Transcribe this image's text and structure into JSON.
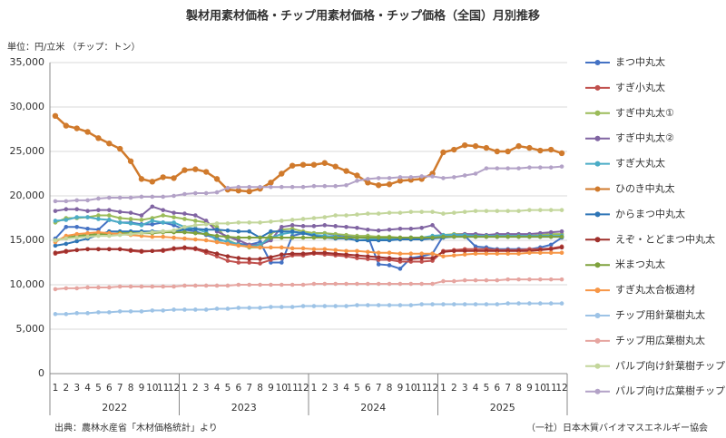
{
  "chart_data": {
    "type": "line",
    "title": "製材用素材価格・チップ用素材価格・チップ価格（全国）月別推移",
    "y_label": "単位：円/立米 （チップ：トン）",
    "source": "出典：農林水産省「木材価格統計」より",
    "credit": "（一社）日本木質バイオマスエネルギー協会",
    "categories": [
      "1",
      "2",
      "3",
      "4",
      "5",
      "6",
      "7",
      "8",
      "9",
      "10",
      "11",
      "12",
      "1",
      "2",
      "3",
      "4",
      "5",
      "6",
      "7",
      "8",
      "9",
      "10",
      "11",
      "12",
      "1",
      "2",
      "3",
      "4",
      "5",
      "6",
      "7",
      "8",
      "9",
      "10",
      "11",
      "12",
      "1",
      "2",
      "3",
      "4",
      "5",
      "6",
      "7",
      "8",
      "9",
      "10",
      "11",
      "12"
    ],
    "years": [
      "2022",
      "2023",
      "2024",
      "2025"
    ],
    "ylim": [
      0,
      35000
    ],
    "yticks": [
      0,
      {
        "value": 5000,
        "label": "5,000"
      },
      {
        "value": 10000,
        "label": "10,000"
      },
      {
        "value": 15000,
        "label": "15,000"
      },
      {
        "value": 20000,
        "label": "20,000"
      },
      {
        "value": 25000,
        "label": "25,000"
      },
      {
        "value": 30000,
        "label": "30,000"
      },
      {
        "value": 35000,
        "label": "35,000"
      }
    ],
    "grid": true,
    "legend": "right",
    "series": [
      {
        "name": "まつ中丸太",
        "color": "#4472c4",
        "values": [
          15200,
          16500,
          16500,
          16300,
          16200,
          17300,
          17000,
          17000,
          16800,
          16800,
          17000,
          16700,
          16200,
          16000,
          15600,
          15200,
          14800,
          14600,
          14500,
          14800,
          12500,
          12500,
          15500,
          15800,
          15800,
          15800,
          15600,
          15500,
          15400,
          15500,
          12300,
          12200,
          11800,
          13000,
          13200,
          13500,
          15500,
          15500,
          15500,
          14300,
          14200,
          14000,
          14000,
          14000,
          14000,
          14200,
          14500,
          15300
        ]
      },
      {
        "name": "すぎ小丸太",
        "color": "#c0504d",
        "values": [
          13500,
          13700,
          13900,
          14000,
          14000,
          14000,
          14000,
          13800,
          13700,
          13800,
          13800,
          14000,
          14100,
          14000,
          13600,
          13200,
          12700,
          12500,
          12500,
          12400,
          12800,
          13000,
          13300,
          13300,
          13500,
          13400,
          13300,
          13200,
          13000,
          12900,
          12800,
          12800,
          12600,
          12600,
          12600,
          12700,
          13800,
          13900,
          14000,
          14000,
          14000,
          13900,
          13900,
          13900,
          14000,
          14000,
          14100,
          14300
        ]
      },
      {
        "name": "すぎ中丸太①",
        "color": "#9bbb59",
        "values": [
          17000,
          17500,
          17500,
          17600,
          17800,
          17800,
          17500,
          17400,
          17300,
          17500,
          17800,
          17600,
          17400,
          17200,
          17000,
          16500,
          15000,
          14500,
          14200,
          14200,
          15800,
          16200,
          16300,
          16000,
          15800,
          15800,
          15700,
          15600,
          15500,
          15500,
          15400,
          15400,
          15300,
          15300,
          15300,
          15400,
          15600,
          15700,
          15700,
          15600,
          15500,
          15500,
          15500,
          15500,
          15500,
          15600,
          15700,
          15700
        ]
      },
      {
        "name": "すぎ中丸太②",
        "color": "#8064a2",
        "values": [
          18300,
          18500,
          18500,
          18300,
          18400,
          18400,
          18200,
          18100,
          17800,
          18800,
          18400,
          18100,
          18000,
          17800,
          17200,
          16000,
          15400,
          15000,
          14500,
          14500,
          15000,
          16500,
          16700,
          16600,
          16600,
          16700,
          16600,
          16500,
          16400,
          16200,
          16100,
          16200,
          16300,
          16300,
          16400,
          16700,
          15500,
          15600,
          15700,
          15700,
          15600,
          15700,
          15700,
          15700,
          15700,
          15800,
          15900,
          16000
        ]
      },
      {
        "name": "すぎ大丸太",
        "color": "#4bacc6",
        "values": [
          17200,
          17300,
          17600,
          17600,
          17400,
          17300,
          17000,
          16900,
          16700,
          17200,
          17000,
          17000,
          16500,
          16300,
          15900,
          15000,
          14900,
          14500,
          14300,
          14500,
          15300,
          15700,
          15900,
          15800,
          15600,
          15500,
          15400,
          15300,
          15300,
          15200,
          15200,
          15200,
          15200,
          15300,
          15300,
          15500,
          15600,
          15600,
          15600,
          15500,
          15500,
          15500,
          15500,
          15500,
          15500,
          15500,
          15500,
          15500
        ]
      },
      {
        "name": "ひのき中丸太",
        "color": "#d07a2c",
        "values": [
          29000,
          27900,
          27600,
          27200,
          26500,
          25900,
          25300,
          23900,
          21900,
          21600,
          22100,
          22000,
          22900,
          23000,
          22700,
          21900,
          20700,
          20600,
          20500,
          20800,
          21500,
          22500,
          23400,
          23500,
          23500,
          23700,
          23300,
          22800,
          22300,
          21500,
          21200,
          21300,
          21700,
          21800,
          21900,
          22500,
          24900,
          25200,
          25700,
          25600,
          25400,
          25000,
          25000,
          25600,
          25400,
          25100,
          25200,
          24800
        ]
      },
      {
        "name": "からまつ中丸太",
        "color": "#2e75b6",
        "values": [
          14400,
          14600,
          14900,
          15200,
          15600,
          16000,
          16000,
          16000,
          16000,
          16000,
          16000,
          16000,
          16200,
          16300,
          16200,
          16200,
          16100,
          16000,
          16000,
          15300,
          16000,
          16000,
          16000,
          15800,
          15500,
          15300,
          15200,
          15200,
          15000,
          15000,
          15000,
          15000,
          15100,
          15100,
          15100,
          15200,
          15300,
          15400,
          15400,
          15400,
          15400,
          15400,
          15400,
          15400,
          15400,
          15400,
          15400,
          15400
        ]
      },
      {
        "name": "えぞ・とどまつ中丸太",
        "color": "#a0302c",
        "values": [
          13600,
          13800,
          13900,
          14000,
          14000,
          14000,
          14000,
          13900,
          13800,
          13800,
          13900,
          14100,
          14200,
          14100,
          13800,
          13500,
          13200,
          13000,
          12900,
          12900,
          13100,
          13400,
          13500,
          13500,
          13600,
          13600,
          13500,
          13400,
          13300,
          13200,
          13100,
          13000,
          12900,
          12900,
          13000,
          13000,
          13700,
          13800,
          13800,
          13800,
          13800,
          13800,
          13800,
          13800,
          13800,
          13900,
          14000,
          14200
        ]
      },
      {
        "name": "米まつ丸太",
        "color": "#7fa23d",
        "values": [
          15000,
          15300,
          15500,
          15600,
          15700,
          15700,
          15800,
          15800,
          15800,
          15800,
          15900,
          15900,
          15900,
          15800,
          15700,
          15500,
          15400,
          15300,
          15300,
          15300,
          15300,
          15300,
          15300,
          15300,
          15300,
          15300,
          15300,
          15300,
          15300,
          15300,
          15300,
          15300,
          15300,
          15300,
          15300,
          15300,
          15400,
          15400,
          15400,
          15400,
          15400,
          15400,
          15400,
          15400,
          15400,
          15400,
          15400,
          15400
        ]
      },
      {
        "name": "すぎ丸太合板適材",
        "color": "#f79646",
        "values": [
          14800,
          15500,
          15700,
          15800,
          15900,
          15800,
          15700,
          15600,
          15500,
          15400,
          15400,
          15300,
          15200,
          15100,
          15000,
          14800,
          14600,
          14400,
          14300,
          14200,
          14200,
          14200,
          14100,
          14100,
          14000,
          14000,
          13900,
          13800,
          13800,
          13700,
          13600,
          13600,
          13500,
          13500,
          13500,
          13500,
          13200,
          13300,
          13400,
          13500,
          13500,
          13500,
          13500,
          13500,
          13600,
          13600,
          13600,
          13600
        ]
      },
      {
        "name": "チップ用針葉樹丸太",
        "color": "#9dc3e6",
        "values": [
          6700,
          6700,
          6800,
          6800,
          6900,
          6900,
          7000,
          7000,
          7000,
          7100,
          7100,
          7200,
          7200,
          7200,
          7200,
          7300,
          7300,
          7400,
          7400,
          7400,
          7500,
          7500,
          7500,
          7600,
          7600,
          7600,
          7600,
          7600,
          7700,
          7700,
          7700,
          7700,
          7700,
          7700,
          7800,
          7800,
          7800,
          7800,
          7800,
          7800,
          7800,
          7800,
          7900,
          7900,
          7900,
          7900,
          7900,
          7900
        ]
      },
      {
        "name": "チップ用広葉樹丸太",
        "color": "#e6a5a0",
        "values": [
          9500,
          9600,
          9600,
          9700,
          9700,
          9700,
          9800,
          9800,
          9800,
          9800,
          9800,
          9800,
          9900,
          9900,
          9900,
          9900,
          9900,
          10000,
          10000,
          10000,
          10000,
          10000,
          10000,
          10000,
          10100,
          10100,
          10100,
          10100,
          10100,
          10100,
          10100,
          10100,
          10100,
          10100,
          10100,
          10100,
          10400,
          10400,
          10500,
          10500,
          10500,
          10500,
          10600,
          10600,
          10600,
          10600,
          10600,
          10600
        ]
      },
      {
        "name": "パルプ向け針葉樹チップ",
        "color": "#c3d69b",
        "values": [
          15000,
          15200,
          15300,
          15400,
          15500,
          15500,
          15600,
          15700,
          15800,
          15900,
          16000,
          16100,
          16500,
          16700,
          16800,
          16900,
          16900,
          17000,
          17000,
          17000,
          17100,
          17200,
          17300,
          17400,
          17500,
          17600,
          17800,
          17800,
          17900,
          18000,
          18000,
          18100,
          18100,
          18200,
          18200,
          18200,
          18000,
          18100,
          18200,
          18300,
          18300,
          18300,
          18300,
          18300,
          18400,
          18400,
          18400,
          18400
        ]
      },
      {
        "name": "パルプ向け広葉樹チップ",
        "color": "#b3a2c7",
        "values": [
          19400,
          19400,
          19500,
          19500,
          19700,
          19800,
          19800,
          19800,
          19900,
          19900,
          19900,
          20000,
          20200,
          20300,
          20300,
          20400,
          20900,
          21000,
          21000,
          21000,
          21000,
          21000,
          21000,
          21000,
          21100,
          21100,
          21100,
          21200,
          21700,
          21900,
          22000,
          22000,
          22100,
          22100,
          22200,
          22200,
          22000,
          22100,
          22300,
          22500,
          23100,
          23100,
          23100,
          23100,
          23200,
          23200,
          23200,
          23300
        ]
      }
    ]
  }
}
